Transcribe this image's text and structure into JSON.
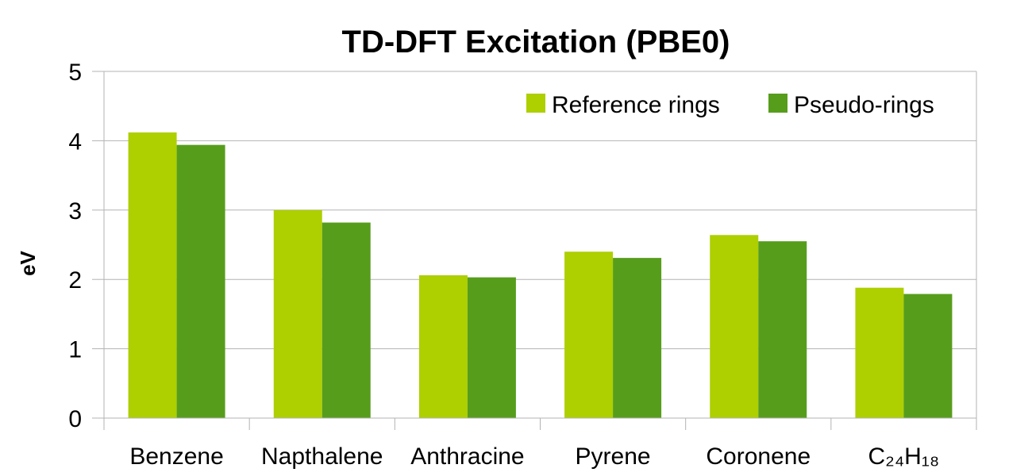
{
  "chart_data": {
    "type": "bar",
    "title": "TD-DFT Excitation (PBE0)",
    "ylabel": "eV",
    "xlabel": "",
    "categories": [
      "Benzene",
      "Napthalene",
      "Anthracine",
      "Pyrene",
      "Coronene",
      "C₂₄H₁₈"
    ],
    "series": [
      {
        "name": "Reference rings",
        "color": "#aecf00",
        "values": [
          4.12,
          3.0,
          2.06,
          2.4,
          2.64,
          1.88
        ]
      },
      {
        "name": "Pseudo-rings",
        "color": "#579d1c",
        "values": [
          3.94,
          2.82,
          2.03,
          2.31,
          2.55,
          1.79
        ]
      }
    ],
    "ylim": [
      0,
      5
    ],
    "yticks": [
      0,
      1,
      2,
      3,
      4,
      5
    ],
    "grid": true,
    "legend_position": "top-right"
  }
}
